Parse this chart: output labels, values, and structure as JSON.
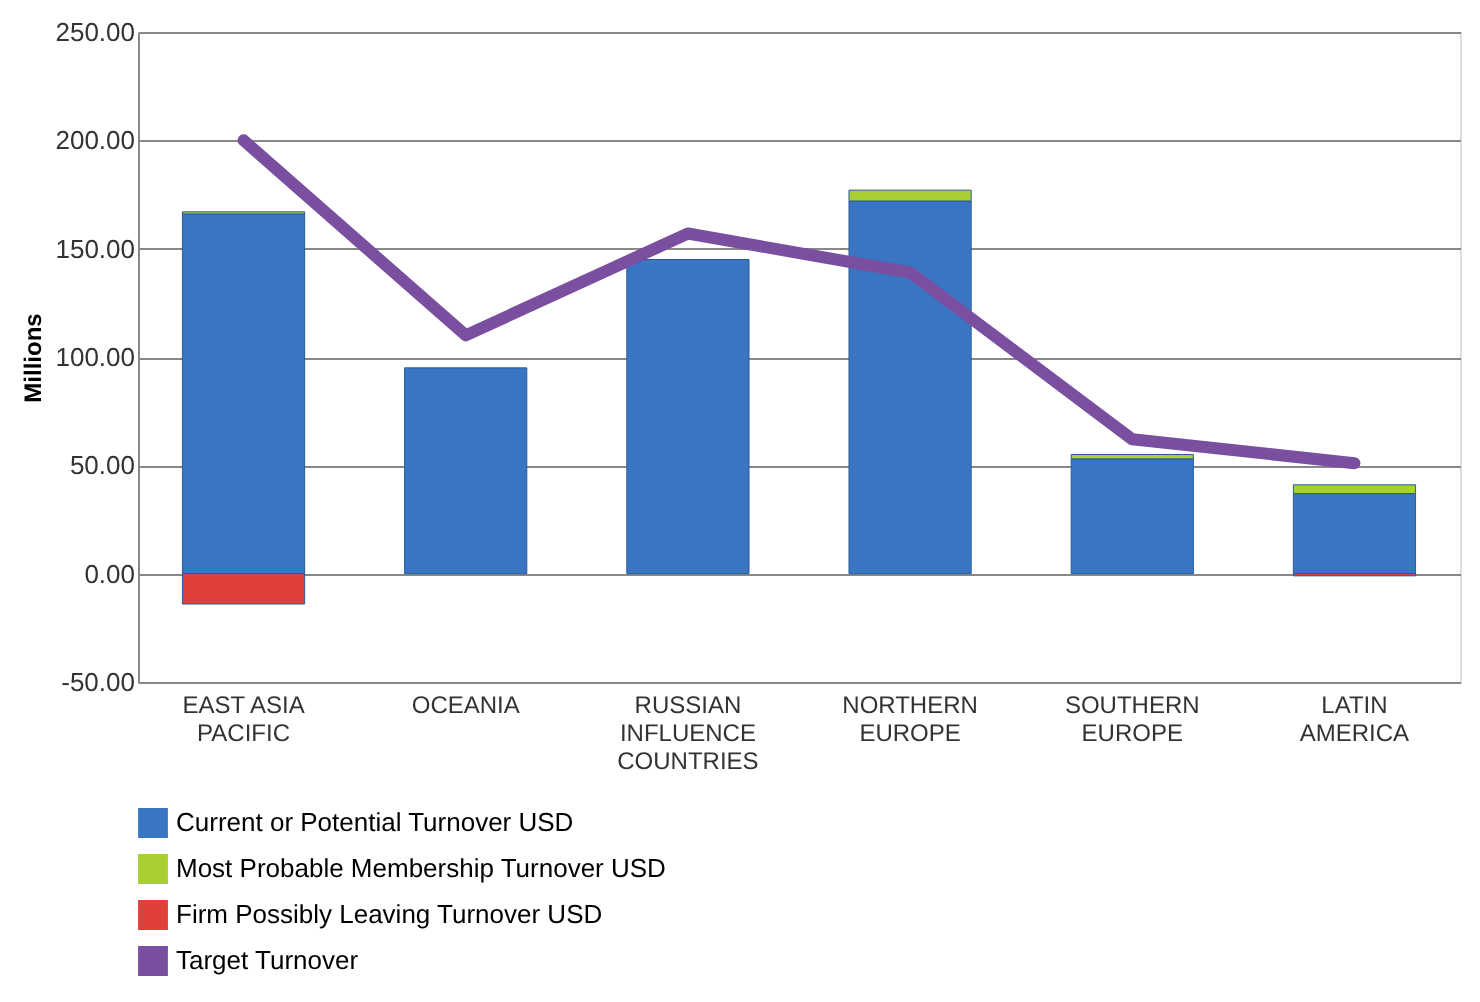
{
  "chart_data": {
    "type": "bar",
    "stacked": true,
    "ylabel": "Millions",
    "categories": [
      "EAST ASIA\nPACIFIC",
      "OCEANIA",
      "RUSSIAN\nINFLUENCE\nCOUNTRIES",
      "NORTHERN\nEUROPE",
      "SOUTHERN\nEUROPE",
      "LATIN\nAMERICA"
    ],
    "series": [
      {
        "name": "Current or Potential Turnover USD",
        "color": "#3a75c4",
        "values": [
          166,
          95,
          145,
          172,
          53,
          37
        ]
      },
      {
        "name": "Most Probable Membership Turnover USD",
        "color": "#a8d030",
        "values": [
          1,
          null,
          null,
          5,
          2,
          4
        ]
      },
      {
        "name": "Firm Possibly Leaving Turnover USD",
        "color": "#e0403a",
        "values": [
          -14,
          null,
          null,
          null,
          null,
          -1
        ]
      },
      {
        "name": "Target Turnover",
        "type": "line",
        "color": "#7a4fa0",
        "values": [
          200,
          110,
          157,
          139,
          62,
          51
        ]
      }
    ],
    "ylim": [
      -50,
      250
    ],
    "yticks": [
      {
        "value": -50,
        "label": "-50.00"
      },
      {
        "value": 0,
        "label": "0.00"
      },
      {
        "value": 50,
        "label": "50.00"
      },
      {
        "value": 100,
        "label": "100.00"
      },
      {
        "value": 150,
        "label": "150.00"
      },
      {
        "value": 200,
        "label": "200.00"
      },
      {
        "value": 250,
        "label": "250.00"
      }
    ],
    "grid": "y",
    "legend": "bottom"
  }
}
